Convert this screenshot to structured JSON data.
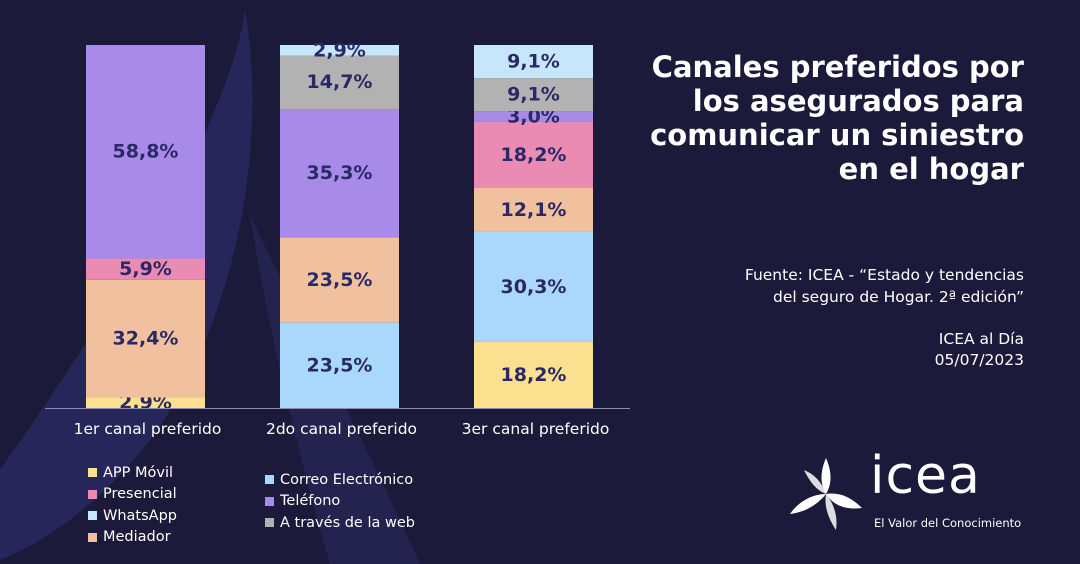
{
  "title": "Canales preferidos por los asegurados para comunicar un siniestro en el hogar",
  "source": {
    "line1": "Fuente: ICEA - “Estado y tendencias",
    "line2": "del seguro de Hogar. 2ª edición”"
  },
  "publication": {
    "name": "ICEA al Día",
    "date": "05/07/2023"
  },
  "logo": {
    "word": "icea",
    "tagline": "El Valor del Conocimiento"
  },
  "colors": {
    "background": "#1b1a3a",
    "APP Móvil": "#fbe08f",
    "Presencial": "#e98bb3",
    "WhatsApp": "#c6e7fb",
    "Mediador": "#f1c19f",
    "Correo Electrónico": "#a9d8fb",
    "Teléfono": "#a88ae8",
    "A través de la web": "#b2b2b2"
  },
  "legend": {
    "col1": [
      {
        "name": "APP Móvil",
        "color": "#fbe08f"
      },
      {
        "name": "Presencial",
        "color": "#e98bb3"
      },
      {
        "name": "WhatsApp",
        "color": "#c6e7fb"
      },
      {
        "name": "Mediador",
        "color": "#f1c19f"
      }
    ],
    "col2": [
      {
        "name": "Correo Electrónico",
        "color": "#a9d8fb"
      },
      {
        "name": "Teléfono",
        "color": "#a88ae8"
      },
      {
        "name": "A través de la web",
        "color": "#b2b2b2"
      }
    ]
  },
  "chart_data": {
    "type": "bar",
    "stacked": true,
    "percent": true,
    "ylim": [
      0,
      100
    ],
    "categories": [
      "1er canal preferido",
      "2do canal preferido",
      "3er canal preferido"
    ],
    "series": [
      {
        "name": "APP Móvil",
        "values": [
          2.9,
          0,
          18.2
        ],
        "labels": [
          "2,9%",
          "",
          "18,2%"
        ]
      },
      {
        "name": "Correo Electrónico",
        "values": [
          0,
          23.5,
          30.3
        ],
        "labels": [
          "",
          "23,5%",
          "30,3%"
        ]
      },
      {
        "name": "Mediador",
        "values": [
          32.4,
          23.5,
          12.1
        ],
        "labels": [
          "32,4%",
          "23,5%",
          "12,1%"
        ]
      },
      {
        "name": "Presencial",
        "values": [
          5.9,
          0,
          18.2
        ],
        "labels": [
          "5,9%",
          "",
          "18,2%"
        ]
      },
      {
        "name": "Teléfono",
        "values": [
          58.8,
          35.3,
          3.0
        ],
        "labels": [
          "58,8%",
          "35,3%",
          "3,0%"
        ]
      },
      {
        "name": "A través de la web",
        "values": [
          0,
          14.7,
          9.1
        ],
        "labels": [
          "",
          "14,7%",
          "9,1%"
        ]
      },
      {
        "name": "WhatsApp",
        "values": [
          0,
          2.9,
          9.1
        ],
        "labels": [
          "",
          "2,9%",
          "9,1%"
        ]
      }
    ],
    "legend_position": "bottom-left",
    "grid": false
  }
}
